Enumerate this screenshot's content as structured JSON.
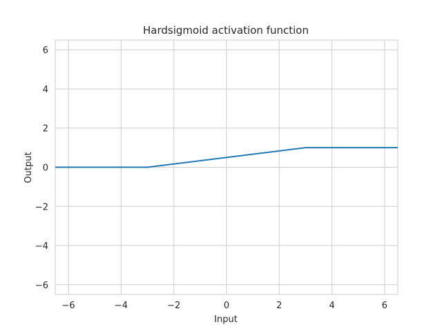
{
  "chart_data": {
    "type": "line",
    "title": "Hardsigmoid activation function",
    "xlabel": "Input",
    "ylabel": "Output",
    "xlim": [
      -6.5,
      6.5
    ],
    "ylim": [
      -6.5,
      6.5
    ],
    "xticks": [
      -6,
      -4,
      -2,
      0,
      2,
      4,
      6
    ],
    "yticks": [
      -6,
      -4,
      -2,
      0,
      2,
      4,
      6
    ],
    "grid": true,
    "series": [
      {
        "color": "#1f77b4",
        "x": [
          -6.5,
          -3,
          3,
          6.5
        ],
        "y": [
          0,
          0,
          1,
          1
        ]
      }
    ]
  }
}
